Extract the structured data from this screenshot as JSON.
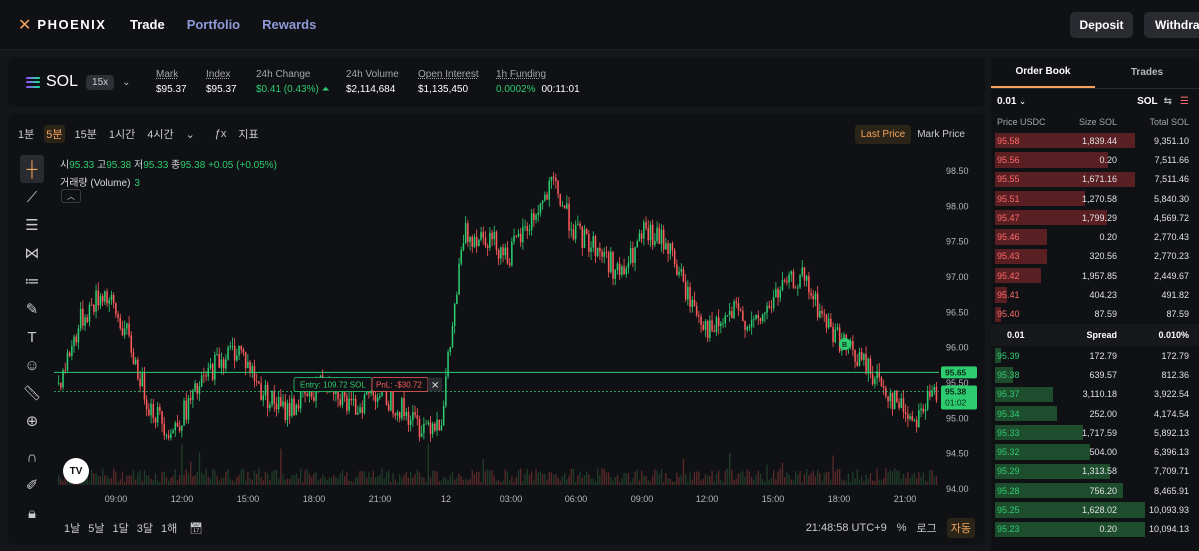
{
  "header": {
    "logo": "PHOENIX",
    "nav": [
      "Trade",
      "Portfolio",
      "Rewards"
    ],
    "deposit": "Deposit",
    "withdraw": "Withdraw"
  },
  "ticker": {
    "symbol": "SOL",
    "leverage": "15x",
    "stats": [
      {
        "label": "Mark",
        "value": "$95.37",
        "underline": true,
        "green": false
      },
      {
        "label": "Index",
        "value": "$95.37",
        "underline": true,
        "green": false
      },
      {
        "label": "24h Change",
        "value": "$0.41 (0.43%)",
        "underline": false,
        "green": true
      },
      {
        "label": "24h Volume",
        "value": "$2,114,684",
        "underline": false,
        "green": false
      },
      {
        "label": "Open Interest",
        "value": "$1,135,450",
        "underline": true,
        "green": false
      },
      {
        "label": "1h Funding",
        "value": "0.0002%",
        "value2": "00:11:01",
        "underline": true,
        "green": true
      }
    ]
  },
  "chart_toolbar": {
    "timeframes": [
      "1분",
      "5분",
      "15분",
      "1시간",
      "4시간"
    ],
    "selected": "5분",
    "indicators": "지표",
    "price_modes": [
      "Last Price",
      "Mark Price"
    ]
  },
  "legend": {
    "ohlc": [
      {
        "k": "시",
        "v": "95.33"
      },
      {
        "k": "고",
        "v": "95.38"
      },
      {
        "k": "저",
        "v": "95.33"
      },
      {
        "k": "종",
        "v": "95.38"
      }
    ],
    "change": "+0.05 (+0.05%)",
    "volume_label": "거래량 (Volume)",
    "volume_value": "3"
  },
  "position_line": {
    "entry": "Entry: 109.72 SOL",
    "pnl": "PnL: -$30.72"
  },
  "badges": {
    "last": "95.65",
    "mark": "95.38",
    "countdown": "01:02",
    "marker": "B"
  },
  "chart_bottom": {
    "ranges": [
      "1날",
      "5날",
      "1달",
      "3달",
      "1해"
    ],
    "time": "21:48:58 UTC+9",
    "percent": "%",
    "log": "로그",
    "auto": "자동"
  },
  "orderbook": {
    "tabs": [
      "Order Book",
      "Trades"
    ],
    "tick": "0.01",
    "unit": "SOL",
    "headers": [
      "Price USDC",
      "Size SOL",
      "Total SOL"
    ],
    "asks": [
      {
        "p": "95.58",
        "s": "1,839.44",
        "t": "9,351.10",
        "w": 140
      },
      {
        "p": "95.56",
        "s": "0.20",
        "t": "7,511.66",
        "w": 113
      },
      {
        "p": "95.55",
        "s": "1,671.16",
        "t": "7,511.46",
        "w": 140
      },
      {
        "p": "95.51",
        "s": "1,270.58",
        "t": "5,840.30",
        "w": 90
      },
      {
        "p": "95.47",
        "s": "1,799.29",
        "t": "4,569.72",
        "w": 112
      },
      {
        "p": "95.46",
        "s": "0.20",
        "t": "2,770.43",
        "w": 52
      },
      {
        "p": "95.43",
        "s": "320.56",
        "t": "2,770.23",
        "w": 52
      },
      {
        "p": "95.42",
        "s": "1,957.85",
        "t": "2,449.67",
        "w": 46
      },
      {
        "p": "95.41",
        "s": "404.23",
        "t": "491.82",
        "w": 12
      },
      {
        "p": "95.40",
        "s": "87.59",
        "t": "87.59",
        "w": 6
      }
    ],
    "spread": {
      "value": "0.01",
      "label": "Spread",
      "pct": "0.010%"
    },
    "bids": [
      {
        "p": "95.39",
        "s": "172.79",
        "t": "172.79",
        "w": 6
      },
      {
        "p": "95.38",
        "s": "639.57",
        "t": "812.36",
        "w": 18
      },
      {
        "p": "95.37",
        "s": "3,110.18",
        "t": "3,922.54",
        "w": 58
      },
      {
        "p": "95.34",
        "s": "252.00",
        "t": "4,174.54",
        "w": 62
      },
      {
        "p": "95.33",
        "s": "1,717.59",
        "t": "5,892.13",
        "w": 88
      },
      {
        "p": "95.32",
        "s": "504.00",
        "t": "6,396.13",
        "w": 95
      },
      {
        "p": "95.29",
        "s": "1,313.58",
        "t": "7,709.71",
        "w": 115
      },
      {
        "p": "95.28",
        "s": "756.20",
        "t": "8,465.91",
        "w": 128
      },
      {
        "p": "95.25",
        "s": "1,628.02",
        "t": "10,093.93",
        "w": 150
      },
      {
        "p": "95.23",
        "s": "0.20",
        "t": "10,094.13",
        "w": 150
      }
    ]
  },
  "chart_data": {
    "type": "candlestick",
    "y_ticks": [
      "98.50",
      "98.00",
      "97.50",
      "97.00",
      "96.50",
      "96.00",
      "95.50",
      "95.00",
      "94.50",
      "94.00"
    ],
    "ylim": [
      94.0,
      98.5
    ],
    "x_ticks": [
      "09:00",
      "12:00",
      "15:00",
      "18:00",
      "21:00",
      "12",
      "03:00",
      "06:00",
      "09:00",
      "12:00",
      "15:00",
      "18:00",
      "21:00"
    ],
    "path": [
      95.5,
      96.4,
      96.8,
      96.2,
      95.2,
      94.8,
      95.3,
      95.8,
      96.0,
      95.4,
      95.1,
      95.3,
      95.6,
      95.1,
      95.4,
      95.2,
      94.9,
      95.0,
      97.6,
      97.6,
      97.3,
      97.8,
      98.3,
      97.6,
      97.4,
      97.0,
      97.6,
      97.5,
      96.7,
      96.2,
      96.5,
      96.3,
      96.8,
      97.0,
      96.4,
      96.0,
      95.7,
      95.3,
      95.0,
      95.4
    ],
    "last_price": 95.65,
    "mark_price": 95.38,
    "entry_price": 95.45
  }
}
